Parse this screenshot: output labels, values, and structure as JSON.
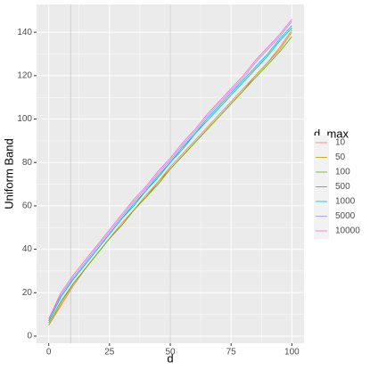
{
  "chart_data": {
    "type": "line",
    "x_label": "d",
    "y_label": "Uniform Band",
    "legend_title": "d_max",
    "x": [
      0,
      5,
      10,
      15,
      20,
      25,
      30,
      35,
      40,
      45,
      50,
      55,
      60,
      65,
      70,
      75,
      80,
      85,
      90,
      95,
      100
    ],
    "series": [
      {
        "name": "10",
        "color": "#F8766D",
        "values": [
          5,
          14,
          23,
          31,
          38,
          45,
          52,
          58,
          65,
          71,
          78,
          84,
          90,
          96,
          102,
          108,
          114,
          120,
          126,
          133,
          141
        ]
      },
      {
        "name": "50",
        "color": "#C49A00",
        "values": [
          5,
          15,
          24,
          31,
          38,
          45,
          51,
          58,
          64,
          71,
          77,
          83,
          89,
          95,
          101,
          107,
          113,
          120,
          126,
          132,
          140
        ]
      },
      {
        "name": "100",
        "color": "#53B400",
        "values": [
          6,
          16,
          24,
          31,
          38,
          45,
          51,
          58,
          64,
          70,
          77,
          83,
          89,
          95,
          101,
          107,
          113,
          119,
          125,
          131,
          138
        ]
      },
      {
        "name": "500",
        "color": "#00C094",
        "values": [
          7,
          18,
          26,
          33,
          40,
          47,
          54,
          60,
          67,
          73,
          80,
          86,
          93,
          99,
          105,
          111,
          117,
          123,
          129,
          136,
          142
        ]
      },
      {
        "name": "1000",
        "color": "#00B6EB",
        "values": [
          7,
          18,
          26,
          33,
          40,
          47,
          54,
          61,
          67,
          74,
          80,
          87,
          93,
          100,
          106,
          112,
          118,
          124,
          130,
          137,
          143
        ]
      },
      {
        "name": "5000",
        "color": "#A58AFF",
        "values": [
          8,
          19,
          27,
          34,
          41,
          48,
          55,
          62,
          68,
          75,
          81,
          88,
          94,
          101,
          107,
          113,
          119,
          126,
          132,
          138,
          145
        ]
      },
      {
        "name": "10000",
        "color": "#FB61D7",
        "values": [
          8,
          20,
          28,
          35,
          42,
          49,
          56,
          63,
          69,
          76,
          82,
          89,
          95,
          102,
          108,
          114,
          120,
          127,
          133,
          139,
          146
        ]
      }
    ],
    "vlines": [
      9,
      50
    ],
    "xlim": [
      -5,
      105
    ],
    "xticks": [
      0,
      25,
      50,
      75,
      100
    ],
    "ylim": [
      -3.3,
      152.8
    ],
    "yticks": [
      0,
      20,
      40,
      60,
      80,
      100,
      120,
      140
    ],
    "grid": true
  }
}
